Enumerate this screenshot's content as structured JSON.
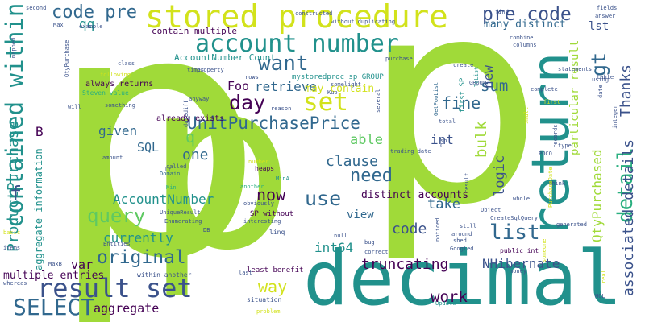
{
  "palette": {
    "lime": "#a0da39",
    "yellow": "#d2e21b",
    "green": "#5ec962",
    "teal": "#21918c",
    "seagreen": "#29af7f",
    "blue": "#31688e",
    "navy": "#3b528b",
    "indigo": "#443983",
    "purple": "#440154"
  },
  "words": {
    "p_left": "p",
    "p_mid": "p",
    "p_right": "p",
    "decimal": "decimal",
    "return": "return",
    "stored_procedure": "stored procedure",
    "account_number": "account number",
    "contained_within": "contained within",
    "result_set": "result set",
    "SELECT": "SELECT",
    "query": "query",
    "UnitPurchasePrice": "UnitPurchasePrice",
    "original": "original",
    "ProductPurchase": "ProductPurchase",
    "detail": "detail",
    "list": "list",
    "associated_details": "associated details",
    "set": "set",
    "want": "want",
    "day": "day",
    "code_pre_top": "code pre",
    "pre_code": "pre code",
    "gt": "gt",
    "lst": "lst",
    "Thanks": "Thanks",
    "QtyPurchased": "QtyPurchased",
    "particular_result": "particular result",
    "Foo": "Foo",
    "retrieve": "retrieve",
    "q": "q",
    "SQL": "SQL",
    "AccountNumber": "AccountNumber",
    "now": "now",
    "use": "use",
    "need": "need",
    "clause": "clause",
    "fine": "fine",
    "sum": "sum",
    "bulk": "bulk",
    "logic": "logic",
    "NHibernate": "NHibernate",
    "truncating": "truncating",
    "work": "work",
    "aggregate": "aggregate",
    "way": "way",
    "int64": "int64",
    "code_mid": "code",
    "take": "take",
    "view": "view",
    "distinct_accounts": "distinct accounts",
    "currently": "currently",
    "var": "var",
    "multiple_entries": "multiple entries",
    "aggregate_information": "aggregate information",
    "f": "f",
    "B": "B",
    "one": "one",
    "given": "given",
    "able": "able",
    "int": "int",
    "new": "new",
    "may_contain": "may contain",
    "many_distinct": "many distinct",
    "qq": "qq",
    "contain_multiple": "contain multiple",
    "AccountNumber_Count": "AccountNumber Count",
    "mystoredproc_sp_GROUP": "mystoredproc sp GROUP",
    "always_returns": "always returns",
    "already_exists": "already exists",
    "Steven_value": "Steven value",
    "following": "following",
    "class": "class",
    "something": "something",
    "amount": "amount",
    "called": "called",
    "Domain": "Domain",
    "Min": "Min",
    "lt": "lt",
    "UniqueResult": "UniqueResult",
    "Enumerating": "Enumerating",
    "DB": "DB",
    "Entities": "Entities",
    "MaxB": "MaxB",
    "items": "items",
    "basic": "basic",
    "whereas": "whereas",
    "within_another": "within another",
    "least_benefit": "least benefit",
    "situation": "situation",
    "problem": "problem",
    "last": "last",
    "heaps": "heaps",
    "MinA": "MinA",
    "SP_without": "SP without",
    "linq": "linq",
    "null": "null",
    "number": "number",
    "another": "another",
    "obviously": "obviously",
    "interesting": "interesting",
    "trading_date": "trading date",
    "correct": "correct",
    "Googled": "Googled",
    "bug": "bug",
    "Update": "Update",
    "money": "money",
    "HQL": "HQL",
    "public_int": "public int",
    "CreateSqlQuery": "CreateSqlQuery",
    "generated": "generated",
    "POCO": "POCO",
    "type": "type",
    "think": "think",
    "whole": "whole",
    "still": "still",
    "around": "around",
    "shed": "shed",
    "noticed": "noticed",
    "Object": "Object",
    "result": "result",
    "first_SP": "first SP",
    "GetFooList": "GetFooList",
    "ToList": "ToList",
    "C": "C",
    "total": "total",
    "several": "several",
    "reason": "reason",
    "Kuo": "Kuo",
    "somelight": "somelight",
    "GROUP": "GROUP",
    "rows": "rows",
    "times": "times",
    "property": "property",
    "purchase": "purchase",
    "create": "create",
    "combine": "combine",
    "columns": "columns",
    "statements": "statements",
    "using": "using",
    "table": "table",
    "complete": "complete",
    "first": "first",
    "records": "records",
    "integer": "integer",
    "PurchaseDate": "PurchaseDate",
    "fields": "fields",
    "answer": "answer",
    "find": "find",
    "constructed": "constructed",
    "without_duplicating": "without duplicating",
    "second": "second",
    "Max": "Max",
    "example": "example",
    "mapped": "mapped",
    "QtyPurchase": "QtyPurchase",
    "anyway": "anyway",
    "datediff": "datediff",
    "will": "will",
    "small": "small",
    "real": "real",
    "someone": "someone",
    "date": "date",
    "sp": "sp"
  }
}
